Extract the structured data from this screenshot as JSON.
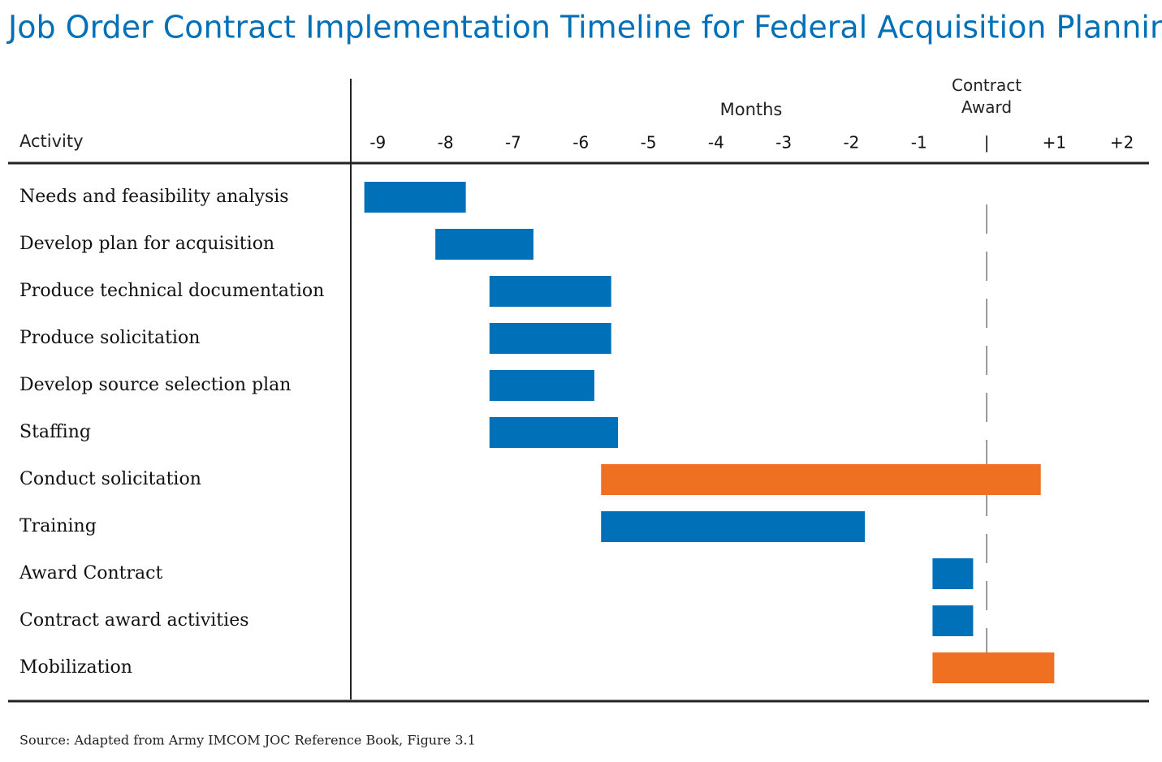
{
  "chart_data": {
    "type": "gantt",
    "title": "Job Order Contract Implementation Timeline for Federal Acquisition Planning",
    "y_label": "Activity",
    "x_label": "Months",
    "annotation": "Contract Award",
    "source": "Source: Adapted from Army IMCOM JOC Reference Book,  Figure 3.1",
    "categories": [
      "Needs and feasibility analysis",
      "Develop plan for acquisition",
      "Produce technical documentation",
      "Produce solicitation",
      "Develop source selection plan",
      "Staffing",
      "Conduct solicitation",
      "Training",
      "Award Contract",
      "Contract award activities",
      "Mobilization"
    ],
    "start": [
      -9.2,
      -8.15,
      -7.35,
      -7.35,
      -7.35,
      -7.35,
      -5.7,
      -5.7,
      -0.8,
      -0.8,
      -0.8
    ],
    "end": [
      -7.7,
      -6.7,
      -5.55,
      -5.55,
      -5.8,
      -5.45,
      0.8,
      -1.8,
      -0.2,
      -0.2,
      1.0
    ],
    "colors": [
      "#0070b8",
      "#0070b8",
      "#0070b8",
      "#0070b8",
      "#0070b8",
      "#0070b8",
      "#f07022",
      "#0070b8",
      "#0070b8",
      "#0070b8",
      "#f07022"
    ],
    "xlim": [
      -9.4,
      2.4
    ],
    "xticks": [
      -9,
      -8,
      -7,
      -6,
      -5,
      -4,
      -3,
      -2,
      -1,
      {
        "value": 0,
        "label": "|"
      },
      {
        "value": 1,
        "label": "+1"
      },
      {
        "value": 2,
        "label": "+2"
      }
    ],
    "marker_line": 0
  }
}
